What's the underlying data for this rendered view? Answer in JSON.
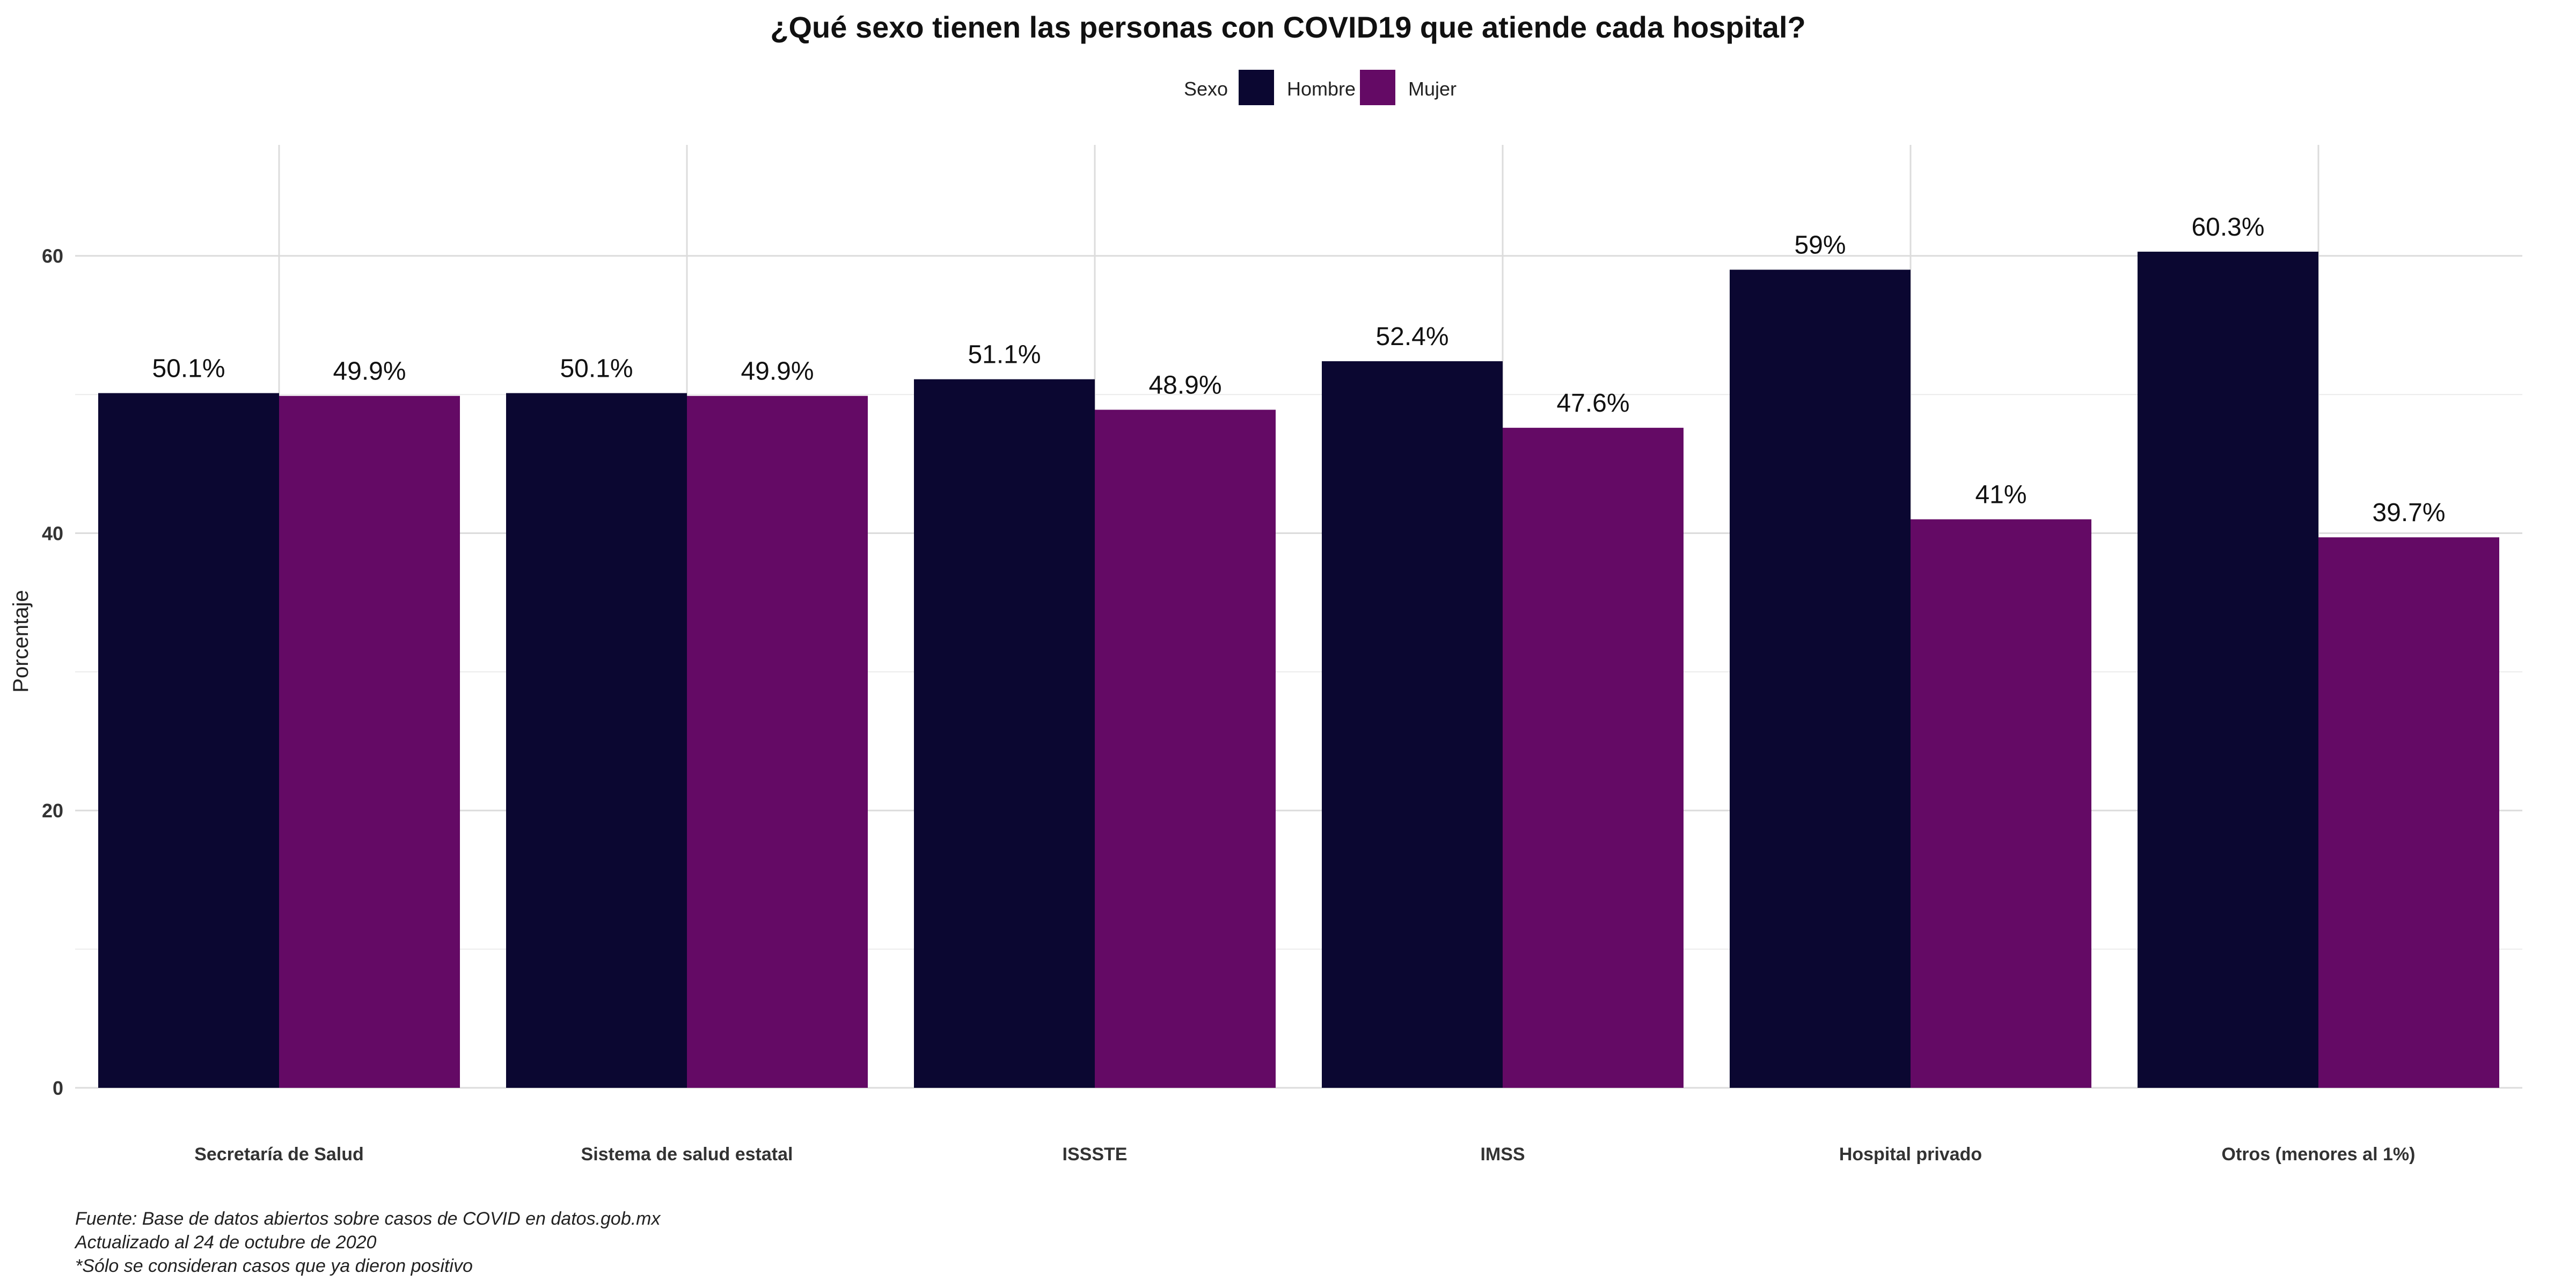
{
  "chart_data": {
    "type": "bar",
    "title": "¿Qué sexo tienen las personas con COVID19 que atiende cada hospital?",
    "legend": {
      "title": "Sexo",
      "position": "top"
    },
    "xlabel": "",
    "ylabel": "Porcentaje",
    "ylim": [
      0,
      68
    ],
    "yticks": [
      0,
      20,
      40,
      60
    ],
    "grid": true,
    "categories": [
      "Secretaría de Salud",
      "Sistema de salud estatal",
      "ISSSTE",
      "IMSS",
      "Hospital privado",
      "Otros (menores al 1%)"
    ],
    "series": [
      {
        "name": "Hombre",
        "color": "#0b0731",
        "values": [
          50.1,
          50.1,
          51.1,
          52.4,
          59,
          60.3
        ],
        "labels": [
          "50.1%",
          "50.1%",
          "51.1%",
          "52.4%",
          "59%",
          "60.3%"
        ]
      },
      {
        "name": "Mujer",
        "color": "#640a65",
        "values": [
          49.9,
          49.9,
          48.9,
          47.6,
          41,
          39.7
        ],
        "labels": [
          "49.9%",
          "49.9%",
          "48.9%",
          "47.6%",
          "41%",
          "39.7%"
        ]
      }
    ],
    "caption": [
      "Fuente: Base de datos abiertos sobre casos de COVID en datos.gob.mx",
      "Actualizado al 24 de octubre de 2020",
      "*Sólo se consideran casos que ya dieron positivo"
    ]
  }
}
